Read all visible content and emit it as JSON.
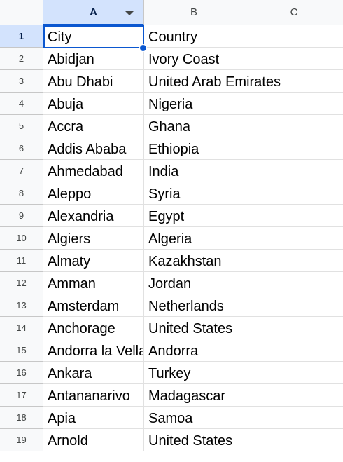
{
  "columns": [
    {
      "letter": "A",
      "selected": true
    },
    {
      "letter": "B",
      "selected": false
    },
    {
      "letter": "C",
      "selected": false
    }
  ],
  "active_cell": "A1",
  "rows": [
    {
      "num": "1",
      "a": "City",
      "b": "Country"
    },
    {
      "num": "2",
      "a": "Abidjan",
      "b": "Ivory Coast"
    },
    {
      "num": "3",
      "a": "Abu Dhabi",
      "b": "United Arab Emirates"
    },
    {
      "num": "4",
      "a": "Abuja",
      "b": "Nigeria"
    },
    {
      "num": "5",
      "a": "Accra",
      "b": "Ghana"
    },
    {
      "num": "6",
      "a": "Addis Ababa",
      "b": "Ethiopia"
    },
    {
      "num": "7",
      "a": "Ahmedabad",
      "b": "India"
    },
    {
      "num": "8",
      "a": "Aleppo",
      "b": "Syria"
    },
    {
      "num": "9",
      "a": "Alexandria",
      "b": "Egypt"
    },
    {
      "num": "10",
      "a": "Algiers",
      "b": "Algeria"
    },
    {
      "num": "11",
      "a": "Almaty",
      "b": "Kazakhstan"
    },
    {
      "num": "12",
      "a": "Amman",
      "b": "Jordan"
    },
    {
      "num": "13",
      "a": "Amsterdam",
      "b": "Netherlands"
    },
    {
      "num": "14",
      "a": "Anchorage",
      "b": "United States"
    },
    {
      "num": "15",
      "a": "Andorra la Vella",
      "b": "Andorra"
    },
    {
      "num": "16",
      "a": "Ankara",
      "b": "Turkey"
    },
    {
      "num": "17",
      "a": "Antananarivo",
      "b": "Madagascar"
    },
    {
      "num": "18",
      "a": "Apia",
      "b": "Samoa"
    },
    {
      "num": "19",
      "a": "Arnold",
      "b": "United States"
    }
  ],
  "colors": {
    "selection_blue": "#0b57d0",
    "header_selected_bg": "#d3e3fd",
    "header_bg": "#f8f9fa"
  }
}
